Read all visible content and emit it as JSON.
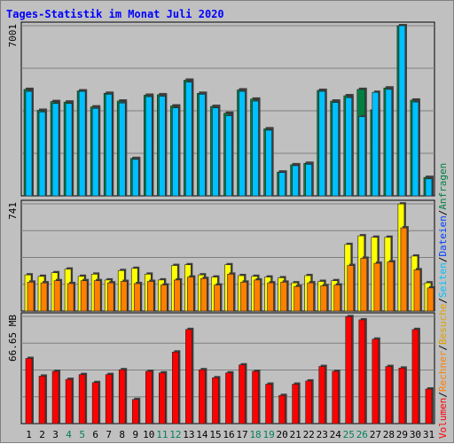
{
  "chart_data": {
    "type": "bar",
    "title": "Tages-Statistik im Monat Juli 2020",
    "categories": [
      "1",
      "2",
      "3",
      "4",
      "5",
      "6",
      "7",
      "8",
      "9",
      "10",
      "11",
      "12",
      "13",
      "14",
      "15",
      "16",
      "17",
      "18",
      "19",
      "20",
      "21",
      "22",
      "23",
      "24",
      "25",
      "26",
      "27",
      "28",
      "29",
      "30",
      "31"
    ],
    "weekend_days": [
      "4",
      "5",
      "11",
      "12",
      "18",
      "19",
      "25",
      "26"
    ],
    "panels": [
      {
        "name": "requests_files",
        "ylabel": "7001",
        "ymax": 7001,
        "series": [
          {
            "name": "Anfragen",
            "color": "#008040",
            "values": [
              4380,
              3520,
              3880,
              3860,
              4320,
              3660,
              4220,
              3900,
              1540,
              4140,
              4160,
              3700,
              4760,
              4220,
              3680,
              3400,
              4360,
              3980,
              2760,
              980,
              1280,
              1340,
              4340,
              3900,
              4120,
              4380,
              3540,
              4440,
              7000,
              3940,
              760
            ]
          },
          {
            "name": "Dateien",
            "color": "#0040ff",
            "values": [
              4300,
              3450,
              3800,
              3800,
              4300,
              3600,
              4180,
              3820,
              1500,
              4080,
              4100,
              3620,
              4680,
              4180,
              3620,
              3300,
              4300,
              3900,
              2700,
              960,
              1240,
              1300,
              4300,
              3840,
              4040,
              3260,
              4260,
              4380,
              7000,
              3860,
              700
            ]
          }
        ]
      },
      {
        "name": "pages_visits",
        "ylabel": "741",
        "ymax": 741,
        "series": [
          {
            "name": "Seiten",
            "color": "#00c0ff",
            "values": []
          },
          {
            "name": "Besuche",
            "color": "#ffff00",
            "values": [
              250,
              240,
              265,
              290,
              240,
              255,
              215,
              280,
              295,
              255,
              215,
              315,
              320,
              250,
              235,
              320,
              245,
              240,
              235,
              230,
              195,
              245,
              205,
              210,
              460,
              520,
              510,
              510,
              740,
              380,
              195
            ]
          }
        ]
      },
      {
        "name": "volume",
        "ylabel": "66.65 MB",
        "ymax": 66.65,
        "series": [
          {
            "name": "Rechner",
            "color": "#ff8000",
            "values": [
              200,
              195,
              210,
              190,
              210,
              210,
              195,
              205,
              190,
              205,
              180,
              215,
              235,
              225,
              180,
              255,
              200,
              215,
              195,
              200,
              170,
              195,
              175,
              180,
              315,
              365,
              330,
              340,
              575,
              285,
              160
            ]
          },
          {
            "name": "Volumen",
            "color": "#ff0000",
            "values": [
              40.5,
              29.5,
              32.5,
              27.5,
              30.5,
              25.5,
              30.5,
              33.5,
              15.0,
              32.5,
              31.5,
              44.5,
              58.5,
              33.5,
              28.5,
              31.5,
              36.5,
              32.5,
              24.5,
              17.5,
              24.5,
              26.5,
              35.5,
              32.5,
              66.5,
              64.5,
              52.5,
              35.5,
              34.5,
              58.5,
              21.5
            ]
          }
        ]
      }
    ],
    "right_legend": [
      {
        "text": "Volumen",
        "color": "#ff0000"
      },
      {
        "text": "/",
        "color": "#000000"
      },
      {
        "text": "Rechner",
        "color": "#ff8000"
      },
      {
        "text": "/",
        "color": "#000000"
      },
      {
        "text": "Besuche",
        "color": "#e0a000"
      },
      {
        "text": "/",
        "color": "#000000"
      },
      {
        "text": "Seiten",
        "color": "#00c0ff"
      },
      {
        "text": "/",
        "color": "#000000"
      },
      {
        "text": "Dateien",
        "color": "#0040ff"
      },
      {
        "text": "/",
        "color": "#000000"
      },
      {
        "text": "Anfragen",
        "color": "#008040"
      }
    ],
    "grid": true,
    "colors": {
      "title": "#0000ff",
      "background": "#c0c0c0",
      "weekday_label": "#000000",
      "weekend_label": "#00805c"
    }
  }
}
